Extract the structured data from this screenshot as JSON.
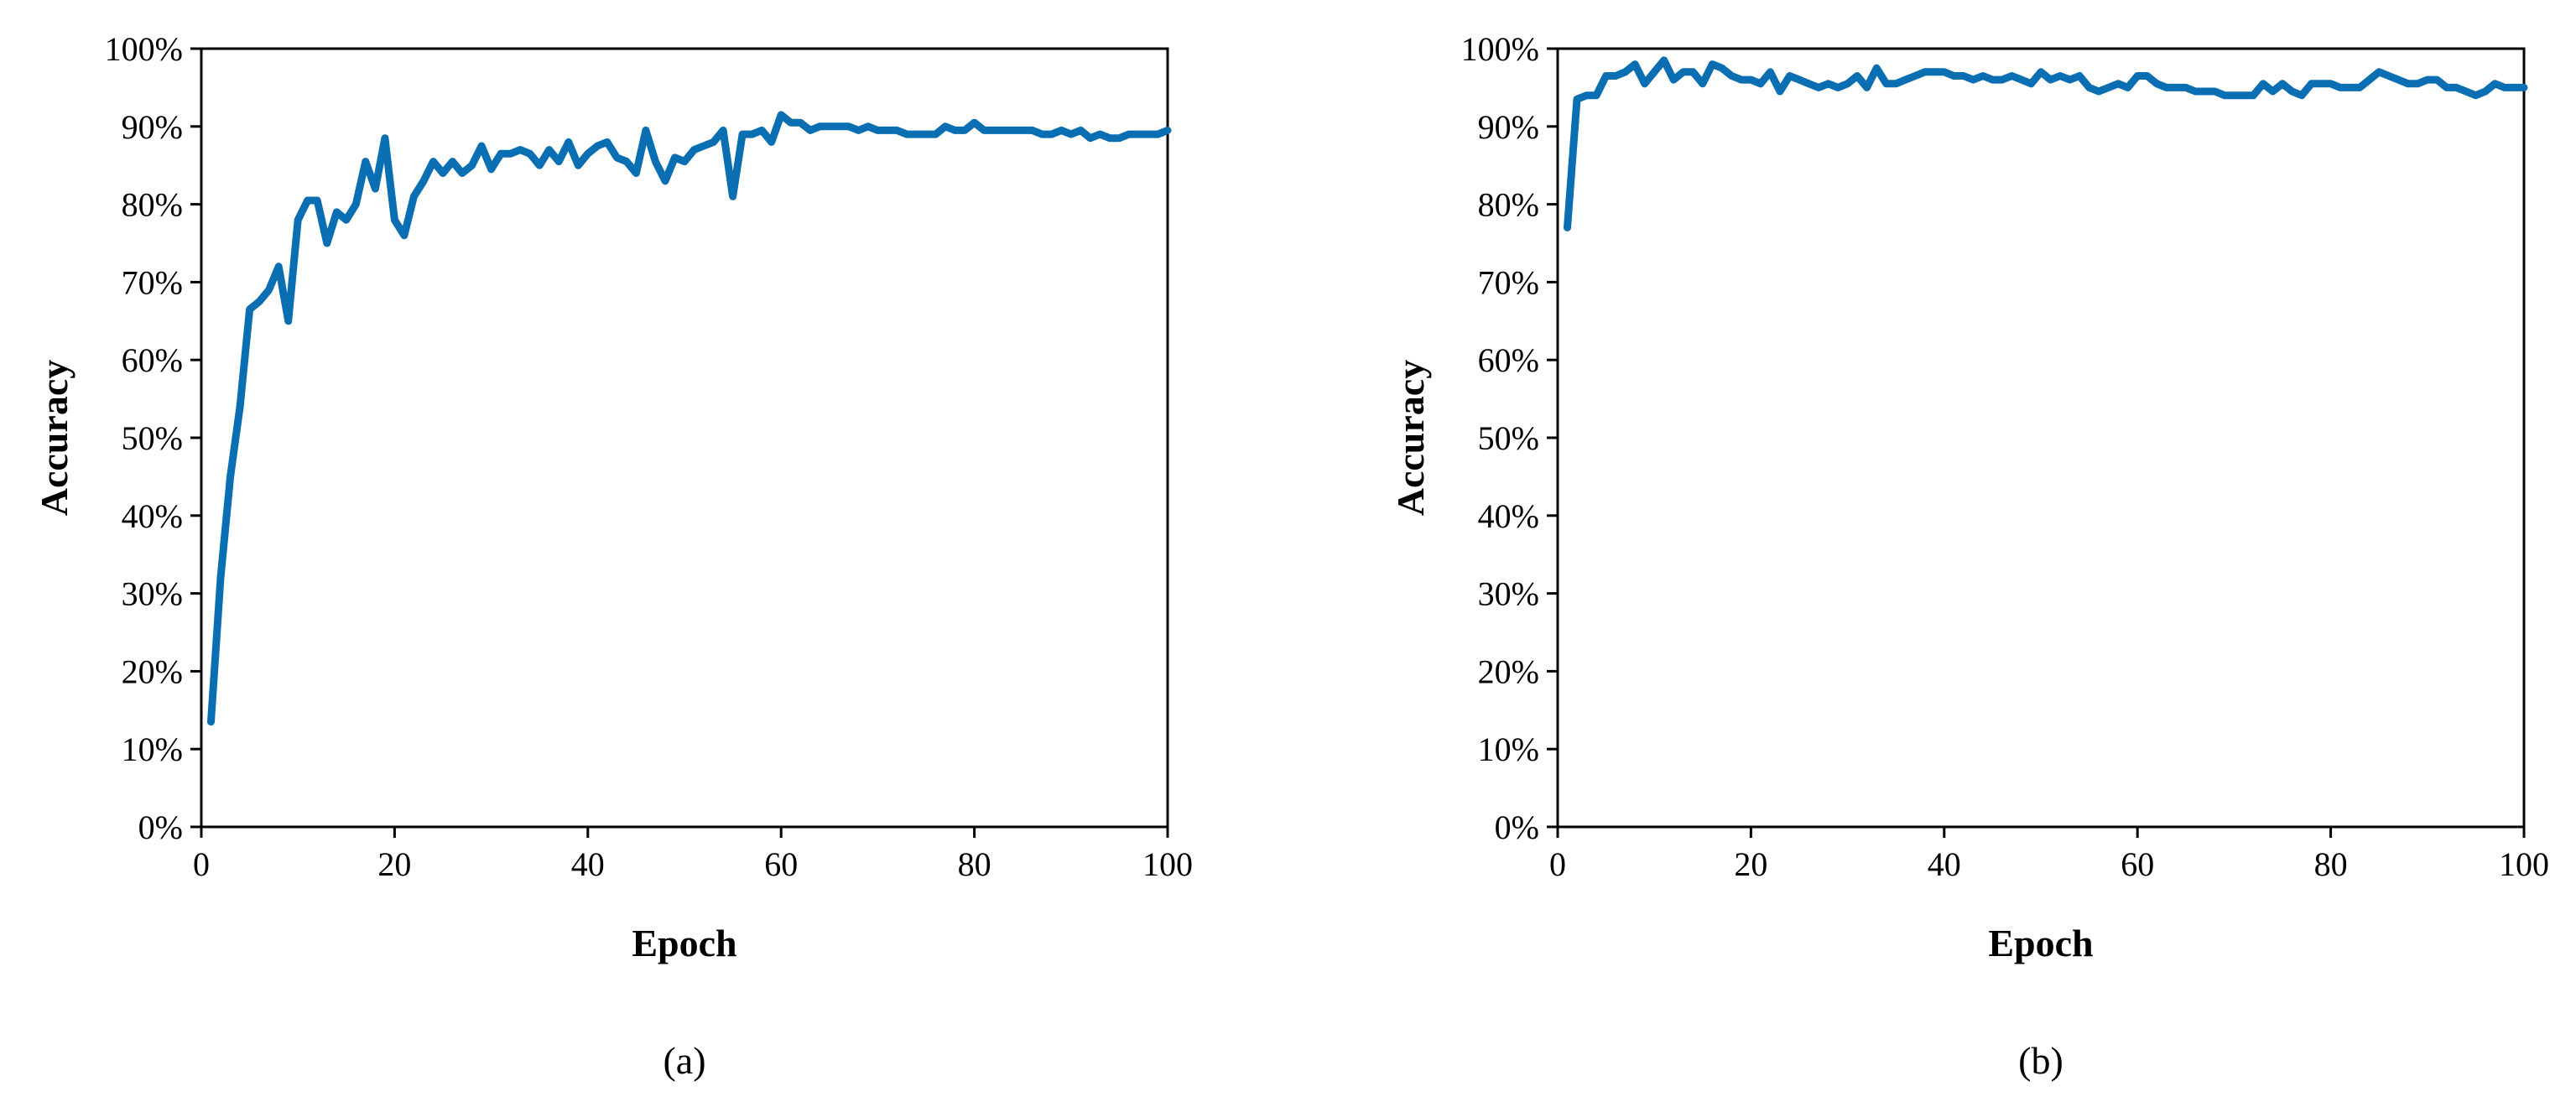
{
  "colors": {
    "line": "#0a6eb3",
    "axes": "#000000"
  },
  "chart_data": [
    {
      "type": "line",
      "panel_label": "(a)",
      "xlabel": "Epoch",
      "ylabel": "Accuracy",
      "xlim": [
        0,
        100
      ],
      "ylim": [
        0,
        100
      ],
      "x_ticks": [
        0,
        20,
        40,
        60,
        80,
        100
      ],
      "y_ticks": [
        0,
        10,
        20,
        30,
        40,
        50,
        60,
        70,
        80,
        90,
        100
      ],
      "y_tick_suffix": "%",
      "grid": false,
      "legend": "none",
      "series": [
        {
          "x": [
            1,
            2,
            3,
            4,
            5,
            6,
            7,
            8,
            9,
            10,
            11,
            12,
            13,
            14,
            15,
            16,
            17,
            18,
            19,
            20,
            21,
            22,
            23,
            24,
            25,
            26,
            27,
            28,
            29,
            30,
            31,
            32,
            33,
            34,
            35,
            36,
            37,
            38,
            39,
            40,
            41,
            42,
            43,
            44,
            45,
            46,
            47,
            48,
            49,
            50,
            51,
            52,
            53,
            54,
            55,
            56,
            57,
            58,
            59,
            60,
            61,
            62,
            63,
            64,
            65,
            66,
            67,
            68,
            69,
            70,
            71,
            72,
            73,
            74,
            75,
            76,
            77,
            78,
            79,
            80,
            81,
            82,
            83,
            84,
            85,
            86,
            87,
            88,
            89,
            90,
            91,
            92,
            93,
            94,
            95,
            96,
            97,
            98,
            99,
            100
          ],
          "y": [
            13.5,
            32,
            45,
            54,
            66.5,
            67.5,
            69,
            72,
            65,
            78,
            80.5,
            80.5,
            75,
            79,
            78,
            80,
            85.5,
            82,
            88.5,
            78,
            76,
            81,
            83,
            85.5,
            84,
            85.5,
            84,
            85,
            87.5,
            84.5,
            86.5,
            86.5,
            87,
            86.5,
            85,
            87,
            85.5,
            88,
            85,
            86.5,
            87.5,
            88,
            86,
            85.5,
            84,
            89.5,
            85.5,
            83,
            86,
            85.5,
            87,
            87.5,
            88,
            89.5,
            81,
            89,
            89,
            89.5,
            88,
            91.5,
            90.5,
            90.5,
            89.5,
            90,
            90,
            90,
            90,
            89.5,
            90,
            89.5,
            89.5,
            89.5,
            89,
            89,
            89,
            89,
            90,
            89.5,
            89.5,
            90.5,
            89.5,
            89.5,
            89.5,
            89.5,
            89.5,
            89.5,
            89,
            89,
            89.5,
            89,
            89.5,
            88.5,
            89,
            88.5,
            88.5,
            89,
            89,
            89,
            89,
            89.5
          ]
        }
      ]
    },
    {
      "type": "line",
      "panel_label": "(b)",
      "xlabel": "Epoch",
      "ylabel": "Accuracy",
      "xlim": [
        0,
        100
      ],
      "ylim": [
        0,
        100
      ],
      "x_ticks": [
        0,
        20,
        40,
        60,
        80,
        100
      ],
      "y_ticks": [
        0,
        10,
        20,
        30,
        40,
        50,
        60,
        70,
        80,
        90,
        100
      ],
      "y_tick_suffix": "%",
      "grid": false,
      "legend": "none",
      "series": [
        {
          "x": [
            1,
            2,
            3,
            4,
            5,
            6,
            7,
            8,
            9,
            10,
            11,
            12,
            13,
            14,
            15,
            16,
            17,
            18,
            19,
            20,
            21,
            22,
            23,
            24,
            25,
            26,
            27,
            28,
            29,
            30,
            31,
            32,
            33,
            34,
            35,
            36,
            37,
            38,
            39,
            40,
            41,
            42,
            43,
            44,
            45,
            46,
            47,
            48,
            49,
            50,
            51,
            52,
            53,
            54,
            55,
            56,
            57,
            58,
            59,
            60,
            61,
            62,
            63,
            64,
            65,
            66,
            67,
            68,
            69,
            70,
            71,
            72,
            73,
            74,
            75,
            76,
            77,
            78,
            79,
            80,
            81,
            82,
            83,
            84,
            85,
            86,
            87,
            88,
            89,
            90,
            91,
            92,
            93,
            94,
            95,
            96,
            97,
            98,
            99,
            100
          ],
          "y": [
            77,
            93.5,
            94,
            94,
            96.5,
            96.5,
            97,
            98,
            95.5,
            97,
            98.5,
            96,
            97,
            97,
            95.5,
            98,
            97.5,
            96.5,
            96,
            96,
            95.5,
            97,
            94.5,
            96.5,
            96,
            95.5,
            95,
            95.5,
            95,
            95.5,
            96.5,
            95,
            97.5,
            95.5,
            95.5,
            96,
            96.5,
            97,
            97,
            97,
            96.5,
            96.5,
            96,
            96.5,
            96,
            96,
            96.5,
            96,
            95.5,
            97,
            96,
            96.5,
            96,
            96.5,
            95,
            94.5,
            95,
            95.5,
            95,
            96.5,
            96.5,
            95.5,
            95,
            95,
            95,
            94.5,
            94.5,
            94.5,
            94,
            94,
            94,
            94,
            95.5,
            94.5,
            95.5,
            94.5,
            94,
            95.5,
            95.5,
            95.5,
            95,
            95,
            95,
            96,
            97,
            96.5,
            96,
            95.5,
            95.5,
            96,
            96,
            95,
            95,
            94.5,
            94,
            94.5,
            95.5,
            95,
            95,
            95
          ]
        }
      ]
    }
  ]
}
